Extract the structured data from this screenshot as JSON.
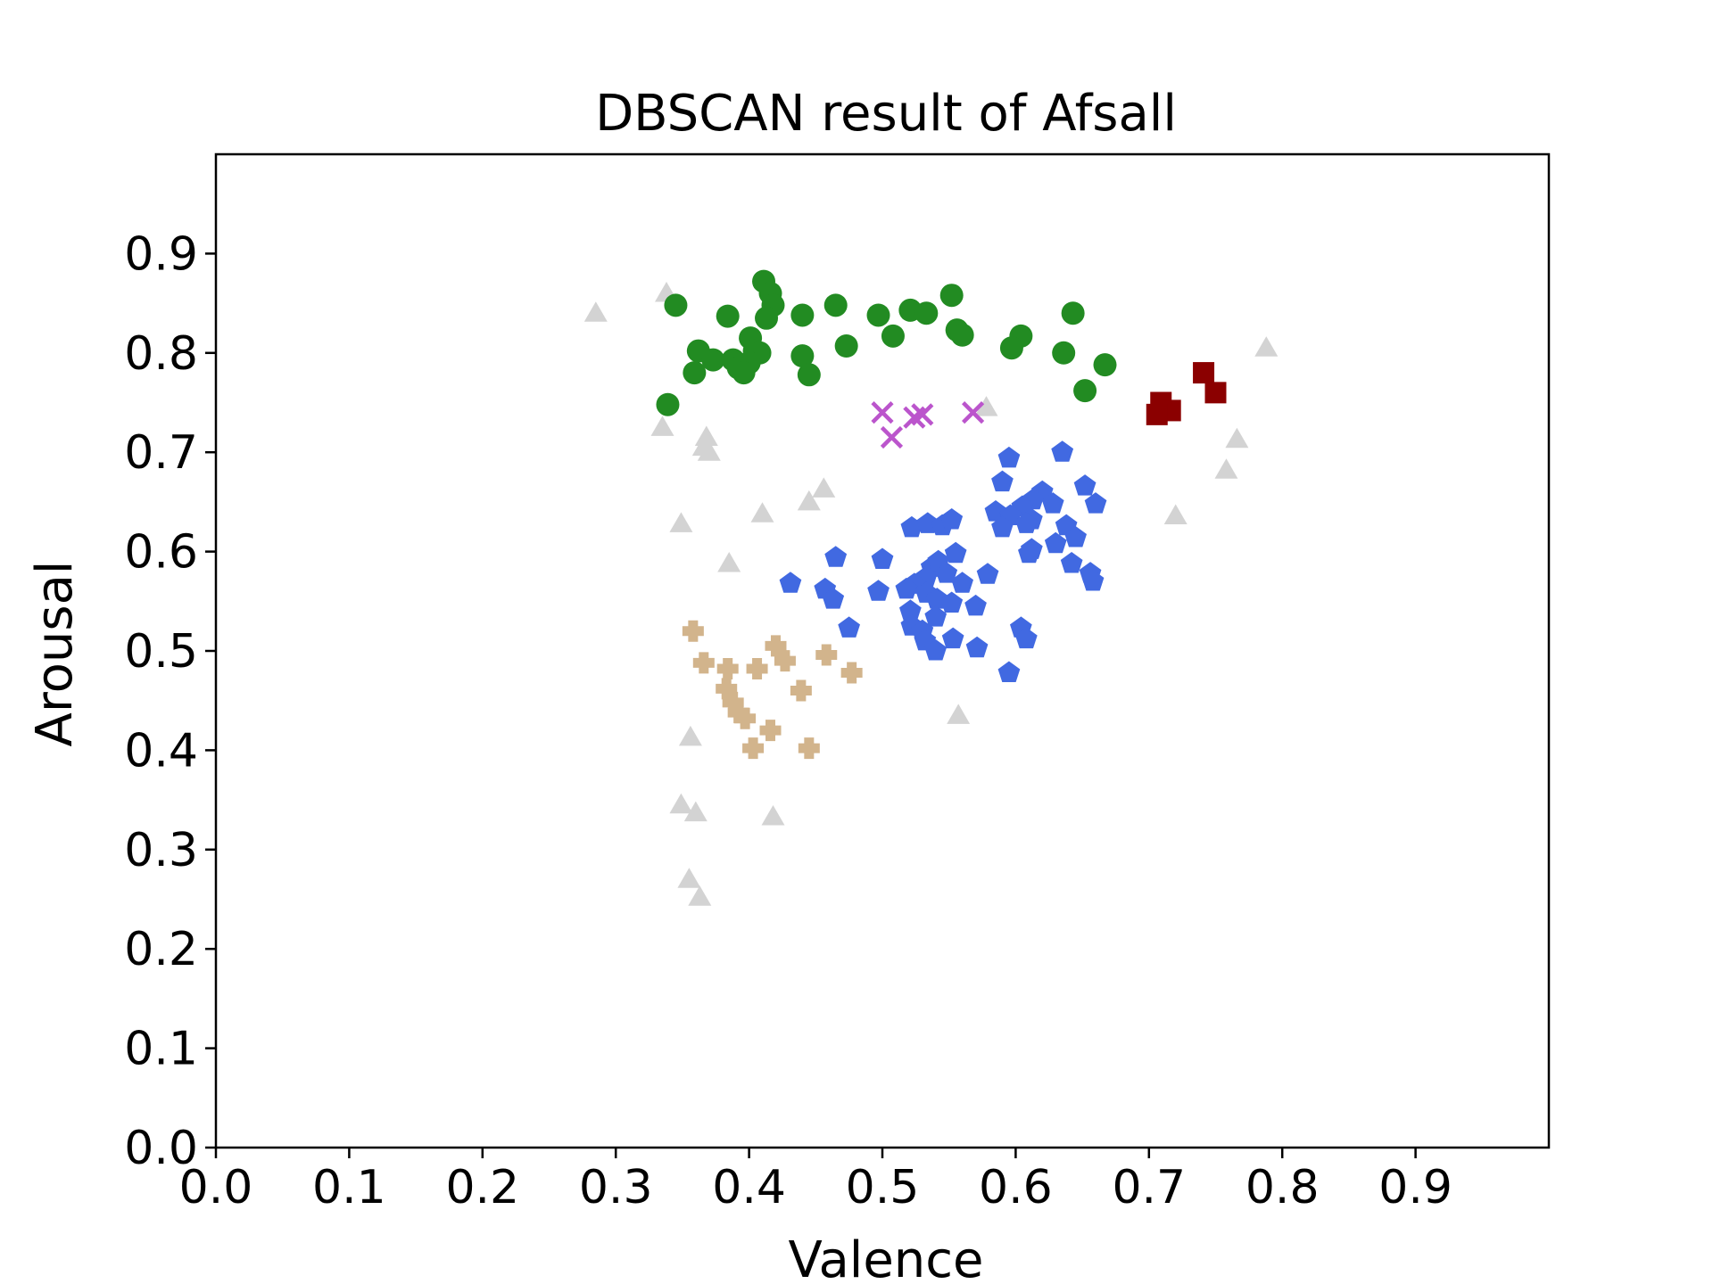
{
  "chart_data": {
    "type": "scatter",
    "title": "DBSCAN result of Afsall",
    "xlabel": "Valence",
    "ylabel": "Arousal",
    "xlim": [
      0.0,
      1.0
    ],
    "ylim": [
      0.0,
      1.0
    ],
    "xticks": [
      "0.0",
      "0.1",
      "0.2",
      "0.3",
      "0.4",
      "0.5",
      "0.6",
      "0.7",
      "0.8",
      "0.9"
    ],
    "yticks": [
      "0.0",
      "0.1",
      "0.2",
      "0.3",
      "0.4",
      "0.5",
      "0.6",
      "0.7",
      "0.8",
      "0.9"
    ],
    "grid": false,
    "legend": "none",
    "series": [
      {
        "marker": "triangle",
        "color": "#d3d3d3",
        "points": [
          [
            0.285,
            0.84
          ],
          [
            0.338,
            0.86
          ],
          [
            0.335,
            0.725
          ],
          [
            0.368,
            0.715
          ],
          [
            0.366,
            0.705
          ],
          [
            0.37,
            0.7
          ],
          [
            0.349,
            0.628
          ],
          [
            0.41,
            0.638
          ],
          [
            0.445,
            0.65
          ],
          [
            0.456,
            0.663
          ],
          [
            0.385,
            0.588
          ],
          [
            0.578,
            0.745
          ],
          [
            0.356,
            0.413
          ],
          [
            0.349,
            0.345
          ],
          [
            0.36,
            0.337
          ],
          [
            0.418,
            0.333
          ],
          [
            0.355,
            0.27
          ],
          [
            0.363,
            0.252
          ],
          [
            0.557,
            0.435
          ],
          [
            0.72,
            0.636
          ],
          [
            0.758,
            0.682
          ],
          [
            0.766,
            0.713
          ],
          [
            0.788,
            0.805
          ]
        ]
      },
      {
        "marker": "circle",
        "color": "#228b22",
        "points": [
          [
            0.345,
            0.848
          ],
          [
            0.411,
            0.872
          ],
          [
            0.416,
            0.86
          ],
          [
            0.418,
            0.848
          ],
          [
            0.413,
            0.835
          ],
          [
            0.384,
            0.837
          ],
          [
            0.44,
            0.838
          ],
          [
            0.465,
            0.848
          ],
          [
            0.497,
            0.838
          ],
          [
            0.521,
            0.843
          ],
          [
            0.533,
            0.84
          ],
          [
            0.552,
            0.858
          ],
          [
            0.556,
            0.823
          ],
          [
            0.56,
            0.818
          ],
          [
            0.508,
            0.817
          ],
          [
            0.473,
            0.807
          ],
          [
            0.401,
            0.815
          ],
          [
            0.404,
            0.802
          ],
          [
            0.408,
            0.8
          ],
          [
            0.362,
            0.802
          ],
          [
            0.373,
            0.793
          ],
          [
            0.388,
            0.793
          ],
          [
            0.4,
            0.79
          ],
          [
            0.392,
            0.785
          ],
          [
            0.396,
            0.78
          ],
          [
            0.359,
            0.78
          ],
          [
            0.44,
            0.797
          ],
          [
            0.445,
            0.778
          ],
          [
            0.604,
            0.817
          ],
          [
            0.597,
            0.805
          ],
          [
            0.643,
            0.84
          ],
          [
            0.636,
            0.8
          ],
          [
            0.667,
            0.788
          ],
          [
            0.652,
            0.762
          ],
          [
            0.339,
            0.748
          ]
        ]
      },
      {
        "marker": "x",
        "color": "#bb55cc",
        "points": [
          [
            0.5,
            0.74
          ],
          [
            0.524,
            0.735
          ],
          [
            0.53,
            0.738
          ],
          [
            0.507,
            0.715
          ],
          [
            0.568,
            0.74
          ]
        ]
      },
      {
        "marker": "square",
        "color": "#8b0000",
        "points": [
          [
            0.709,
            0.75
          ],
          [
            0.716,
            0.742
          ],
          [
            0.706,
            0.738
          ],
          [
            0.741,
            0.78
          ],
          [
            0.75,
            0.76
          ]
        ]
      },
      {
        "marker": "pentagon",
        "color": "#4169e1",
        "points": [
          [
            0.595,
            0.694
          ],
          [
            0.635,
            0.7
          ],
          [
            0.59,
            0.67
          ],
          [
            0.62,
            0.66
          ],
          [
            0.613,
            0.652
          ],
          [
            0.628,
            0.648
          ],
          [
            0.605,
            0.645
          ],
          [
            0.585,
            0.64
          ],
          [
            0.596,
            0.636
          ],
          [
            0.612,
            0.632
          ],
          [
            0.608,
            0.628
          ],
          [
            0.59,
            0.624
          ],
          [
            0.652,
            0.666
          ],
          [
            0.66,
            0.648
          ],
          [
            0.638,
            0.626
          ],
          [
            0.645,
            0.614
          ],
          [
            0.63,
            0.608
          ],
          [
            0.612,
            0.602
          ],
          [
            0.61,
            0.598
          ],
          [
            0.642,
            0.588
          ],
          [
            0.656,
            0.578
          ],
          [
            0.658,
            0.57
          ],
          [
            0.522,
            0.624
          ],
          [
            0.534,
            0.628
          ],
          [
            0.545,
            0.626
          ],
          [
            0.552,
            0.632
          ],
          [
            0.555,
            0.598
          ],
          [
            0.537,
            0.584
          ],
          [
            0.542,
            0.59
          ],
          [
            0.548,
            0.578
          ],
          [
            0.533,
            0.574
          ],
          [
            0.524,
            0.567
          ],
          [
            0.518,
            0.562
          ],
          [
            0.533,
            0.558
          ],
          [
            0.541,
            0.552
          ],
          [
            0.552,
            0.548
          ],
          [
            0.56,
            0.568
          ],
          [
            0.57,
            0.545
          ],
          [
            0.579,
            0.577
          ],
          [
            0.465,
            0.594
          ],
          [
            0.5,
            0.592
          ],
          [
            0.497,
            0.56
          ],
          [
            0.457,
            0.562
          ],
          [
            0.463,
            0.552
          ],
          [
            0.431,
            0.568
          ],
          [
            0.521,
            0.54
          ],
          [
            0.54,
            0.534
          ],
          [
            0.522,
            0.525
          ],
          [
            0.53,
            0.52
          ],
          [
            0.532,
            0.51
          ],
          [
            0.54,
            0.5
          ],
          [
            0.553,
            0.512
          ],
          [
            0.571,
            0.503
          ],
          [
            0.595,
            0.478
          ],
          [
            0.604,
            0.523
          ],
          [
            0.608,
            0.512
          ],
          [
            0.475,
            0.523
          ]
        ]
      },
      {
        "marker": "plus",
        "color": "#d2b48c",
        "points": [
          [
            0.358,
            0.52
          ],
          [
            0.366,
            0.488
          ],
          [
            0.384,
            0.482
          ],
          [
            0.406,
            0.482
          ],
          [
            0.42,
            0.505
          ],
          [
            0.427,
            0.49
          ],
          [
            0.458,
            0.496
          ],
          [
            0.477,
            0.478
          ],
          [
            0.439,
            0.46
          ],
          [
            0.383,
            0.462
          ],
          [
            0.388,
            0.448
          ],
          [
            0.392,
            0.438
          ],
          [
            0.397,
            0.432
          ],
          [
            0.416,
            0.42
          ],
          [
            0.403,
            0.402
          ],
          [
            0.445,
            0.402
          ]
        ]
      }
    ]
  }
}
